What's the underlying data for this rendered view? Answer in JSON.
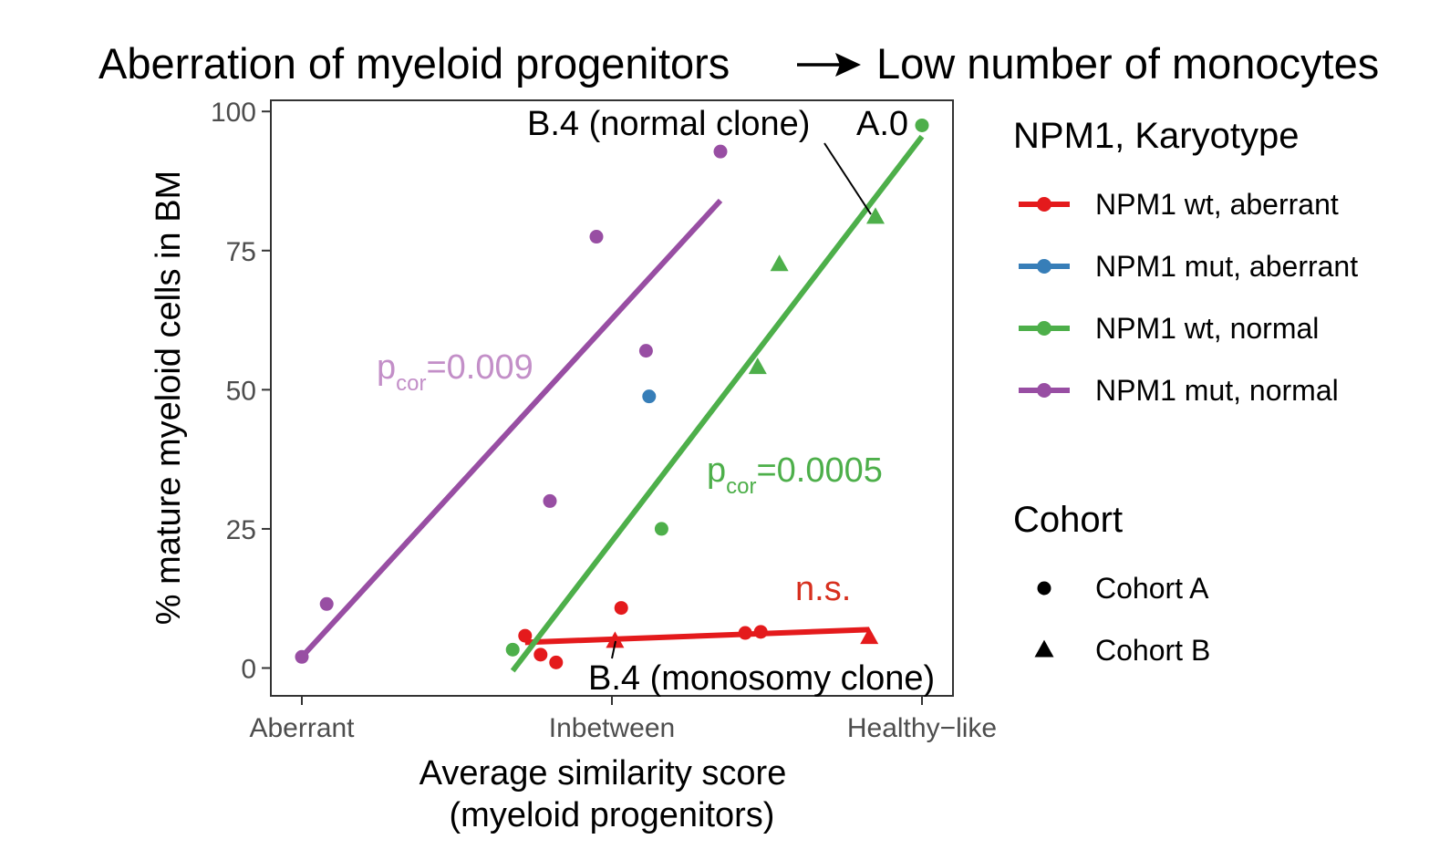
{
  "chart_data": {
    "type": "scatter",
    "title": {
      "left": "Aberration of myeloid progenitors",
      "right": "Low number of monocytes"
    },
    "xlabel_line1": "Average similarity score",
    "xlabel_line2": "(myeloid progenitors)",
    "ylabel": "% mature myeloid cells in BM",
    "xlim": [
      -0.1,
      2.1
    ],
    "ylim": [
      -5,
      102
    ],
    "x_ticks": [
      {
        "value": 0,
        "label": "Aberrant"
      },
      {
        "value": 1,
        "label": "Inbetween"
      },
      {
        "value": 2,
        "label": "Healthy−like"
      }
    ],
    "y_ticks": [
      {
        "value": 0,
        "label": "0"
      },
      {
        "value": 25,
        "label": "25"
      },
      {
        "value": 50,
        "label": "50"
      },
      {
        "value": 75,
        "label": "75"
      },
      {
        "value": 100,
        "label": "100"
      }
    ],
    "series": [
      {
        "key": "npm1_wt_aberrant",
        "name": "NPM1 wt, aberrant",
        "color": "#E41A1C",
        "points": [
          {
            "x": 0.72,
            "y": 5.8,
            "cohort": "A"
          },
          {
            "x": 0.77,
            "y": 2.4,
            "cohort": "A"
          },
          {
            "x": 0.82,
            "y": 1.0,
            "cohort": "A"
          },
          {
            "x": 1.03,
            "y": 10.8,
            "cohort": "A"
          },
          {
            "x": 1.01,
            "y": 4.8,
            "cohort": "B"
          },
          {
            "x": 1.43,
            "y": 6.3,
            "cohort": "A"
          },
          {
            "x": 1.48,
            "y": 6.5,
            "cohort": "A"
          },
          {
            "x": 1.83,
            "y": 5.5,
            "cohort": "B"
          }
        ],
        "fit": {
          "x": [
            0.72,
            1.83
          ],
          "y": [
            4.6,
            6.9
          ]
        }
      },
      {
        "key": "npm1_mut_aberrant",
        "name": "NPM1 mut, aberrant",
        "color": "#377EB8",
        "points": [
          {
            "x": 1.12,
            "y": 48.8,
            "cohort": "A"
          }
        ]
      },
      {
        "key": "npm1_wt_normal",
        "name": "NPM1 wt, normal",
        "color": "#4DAF4A",
        "points": [
          {
            "x": 0.68,
            "y": 3.3,
            "cohort": "A"
          },
          {
            "x": 1.16,
            "y": 25.0,
            "cohort": "A"
          },
          {
            "x": 1.47,
            "y": 54.0,
            "cohort": "B"
          },
          {
            "x": 1.54,
            "y": 72.5,
            "cohort": "B"
          },
          {
            "x": 1.85,
            "y": 81.0,
            "cohort": "B"
          },
          {
            "x": 2.0,
            "y": 97.5,
            "cohort": "A"
          }
        ],
        "fit": {
          "x": [
            0.68,
            2.0
          ],
          "y": [
            -0.5,
            95.5
          ]
        }
      },
      {
        "key": "npm1_mut_normal",
        "name": "NPM1 mut, normal",
        "color": "#984EA3",
        "points": [
          {
            "x": 0.0,
            "y": 2.0,
            "cohort": "A"
          },
          {
            "x": 0.08,
            "y": 11.5,
            "cohort": "A"
          },
          {
            "x": 0.8,
            "y": 30.0,
            "cohort": "A"
          },
          {
            "x": 0.95,
            "y": 77.5,
            "cohort": "A"
          },
          {
            "x": 1.11,
            "y": 57.0,
            "cohort": "A"
          },
          {
            "x": 1.35,
            "y": 92.8,
            "cohort": "A"
          }
        ],
        "fit": {
          "x": [
            0.0,
            1.35
          ],
          "y": [
            2.0,
            84.0
          ]
        }
      }
    ],
    "annotations": {
      "p_purple": {
        "prefix": "p",
        "subscript": "cor",
        "value": "=0.009",
        "color": "#C38FC8"
      },
      "p_green": {
        "prefix": "p",
        "subscript": "cor",
        "value": "=0.0005",
        "color": "#4DAF4A"
      },
      "ns": {
        "text": "n.s.",
        "color": "#D7301F"
      },
      "normal_clone": {
        "text": "B.4 (normal clone)"
      },
      "a0": {
        "text": "A.0"
      },
      "monosomy_clone": {
        "text": "B.4 (monosomy clone)"
      }
    },
    "legend": {
      "title": "NPM1, Karyotype",
      "cohort_title": "Cohort",
      "cohort_entries": [
        {
          "shape": "circle",
          "label": "Cohort A"
        },
        {
          "shape": "triangle",
          "label": "Cohort B"
        }
      ]
    }
  }
}
